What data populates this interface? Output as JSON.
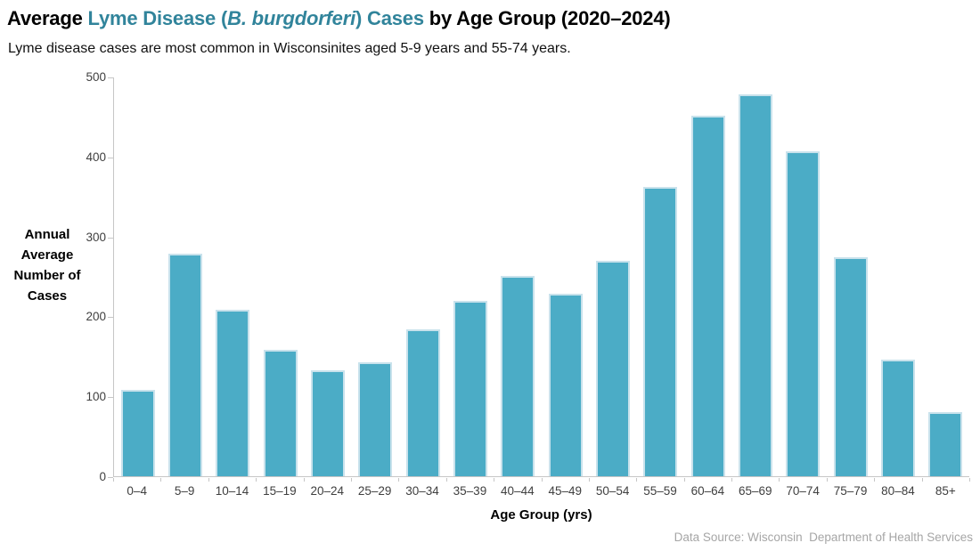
{
  "title": {
    "prefix": "Average ",
    "highlight_pre": "Lyme Disease (",
    "highlight_italic": "B. burgdorferi",
    "highlight_post": ") Cases",
    "suffix": " by Age Group (2020–2024)"
  },
  "subtitle": "Lyme disease cases are most common in Wisconsinites aged 5-9 years and 55-74 years.",
  "footer": "Data Source: Wisconsin  Department of Health Services",
  "colors": {
    "title_accent": "#31849B",
    "bar_fill": "#4BACC6",
    "bar_border": "#C9E2EC",
    "axis_line": "#C6C6C6",
    "tick_text": "#3F3F3F",
    "footer_text": "#A6A6A6"
  },
  "chart_data": {
    "type": "bar",
    "title": "Average Lyme Disease (B. burgdorferi) Cases by Age Group (2020–2024)",
    "subtitle": "Lyme disease cases are most common in Wisconsinites aged 5-9 years and 55-74 years.",
    "categories": [
      "0–4",
      "5–9",
      "10–14",
      "15–19",
      "20–24",
      "25–29",
      "30–34",
      "35–39",
      "40–44",
      "45–49",
      "50–54",
      "55–59",
      "60–64",
      "65–69",
      "70–74",
      "75–79",
      "80–84",
      "85+"
    ],
    "values": [
      108,
      278,
      208,
      158,
      133,
      142,
      184,
      219,
      251,
      228,
      269,
      362,
      451,
      478,
      406,
      274,
      146,
      80
    ],
    "xlabel": "Age Group (yrs)",
    "ylabel": "Annual Average Number of Cases",
    "ylabel_lines": [
      "Annual",
      "Average",
      "Number of",
      "Cases"
    ],
    "yticks": [
      0,
      100,
      200,
      300,
      400,
      500
    ],
    "ylim": [
      0,
      500
    ],
    "grid": false,
    "legend": "none",
    "bar_color": "#4BACC6",
    "source": "Data Source: Wisconsin  Department of Health Services"
  }
}
